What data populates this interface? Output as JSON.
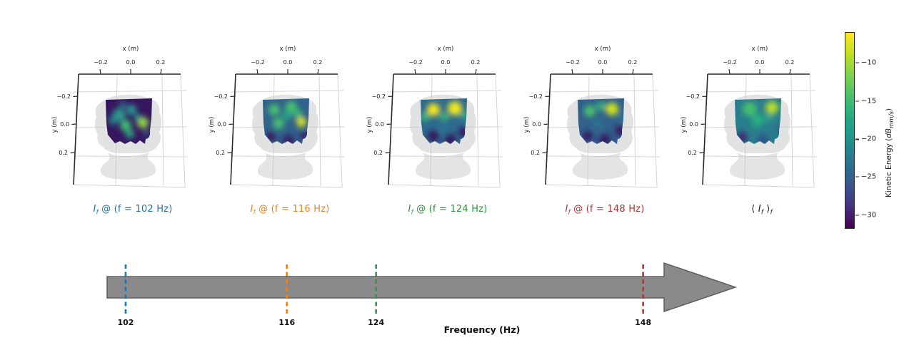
{
  "panels": [
    {
      "text": "I_f @ (f = 102 Hz)",
      "caption_parts": [
        {
          "text": "I",
          "italic": true
        },
        {
          "text": "f",
          "sub": true,
          "italic": true
        },
        {
          "text": " @ (f = 102 Hz)"
        }
      ],
      "caption_color": "#1b6fae",
      "axis": {
        "x_label": "x (m)",
        "y_label": "y (m)",
        "x_ticks": [
          "−0.2",
          "0.0",
          "0.2"
        ],
        "y_ticks": [
          "−0.2",
          "0.0",
          "0.2"
        ]
      },
      "heatmap_base": "#35175e",
      "hotspots": [
        [
          96,
          106,
          9,
          "#2f998c"
        ],
        [
          113,
          99,
          7,
          "#2f998c"
        ],
        [
          105,
          121,
          8,
          "#3dbc74"
        ],
        [
          129,
          117,
          8,
          "#8ed645"
        ],
        [
          87,
          114,
          6,
          "#28878b"
        ],
        [
          111,
          133,
          6,
          "#2fa587"
        ],
        [
          121,
          109,
          5,
          "#28878b"
        ],
        [
          101,
          92,
          5,
          "#2d6d8e"
        ],
        [
          134,
          131,
          4,
          "#2d6d8e"
        ]
      ]
    },
    {
      "text": "I_f @ (f = 116 Hz)",
      "caption_parts": [
        {
          "text": "I",
          "italic": true
        },
        {
          "text": "f",
          "sub": true,
          "italic": true
        },
        {
          "text": " @ (f = 116 Hz)"
        }
      ],
      "caption_color": "#e8821e",
      "axis": {
        "x_label": "x (m)",
        "y_label": "y (m)",
        "x_ticks": [
          "−0.2",
          "0.0",
          "0.2"
        ],
        "y_ticks": [
          "−0.2",
          "0.0",
          "0.2"
        ]
      },
      "heatmap_base": "#30618c",
      "hotspots": [
        [
          93,
          99,
          8,
          "#49c16e"
        ],
        [
          117,
          95,
          8,
          "#49c16e"
        ],
        [
          131,
          116,
          7,
          "#dde225"
        ],
        [
          99,
          118,
          8,
          "#44bf70"
        ],
        [
          111,
          106,
          7,
          "#26a585"
        ],
        [
          88,
          137,
          7,
          "#371a5e"
        ],
        [
          113,
          142,
          8,
          "#371a5e"
        ],
        [
          135,
          135,
          6,
          "#371a5e"
        ],
        [
          126,
          104,
          6,
          "#35b779"
        ]
      ]
    },
    {
      "text": "I_f @ (f = 124 Hz)",
      "caption_parts": [
        {
          "text": "I",
          "italic": true
        },
        {
          "text": "f",
          "sub": true,
          "italic": true
        },
        {
          "text": " @ (f = 124 Hz)"
        }
      ],
      "caption_color": "#2e9440",
      "axis": {
        "x_label": "x (m)",
        "y_label": "y (m)",
        "x_ticks": [
          "−0.2",
          "0.0",
          "0.2"
        ],
        "y_ticks": [
          "−0.2",
          "0.0",
          "0.2"
        ]
      },
      "heatmap_base": "#2e6a8e",
      "hotspots": [
        [
          95,
          99,
          9,
          "#f0e51e"
        ],
        [
          125,
          97,
          10,
          "#f0e51e"
        ],
        [
          110,
          109,
          6,
          "#35b779"
        ],
        [
          83,
          109,
          6,
          "#35b779"
        ],
        [
          138,
          107,
          5,
          "#35b779"
        ],
        [
          95,
          136,
          8,
          "#34175c"
        ],
        [
          119,
          141,
          8,
          "#34175c"
        ],
        [
          137,
          130,
          7,
          "#34175c"
        ],
        [
          108,
          125,
          5,
          "#2a788e"
        ]
      ]
    },
    {
      "text": "I_f @ (f = 148 Hz)",
      "caption_parts": [
        {
          "text": "I",
          "italic": true
        },
        {
          "text": "f",
          "sub": true,
          "italic": true
        },
        {
          "text": " @ (f = 148 Hz)"
        }
      ],
      "caption_color": "#b23030",
      "axis": {
        "x_label": "x (m)",
        "y_label": "y (m)",
        "x_ticks": [
          "−0.2",
          "0.0",
          "0.2"
        ],
        "y_ticks": [
          "−0.2",
          "0.0",
          "0.2"
        ]
      },
      "heatmap_base": "#31618c",
      "hotspots": [
        [
          94,
          101,
          8,
          "#4ac16d"
        ],
        [
          125,
          98,
          9,
          "#cfe11d"
        ],
        [
          109,
          94,
          6,
          "#35b779"
        ],
        [
          91,
          136,
          7,
          "#37195f"
        ],
        [
          115,
          141,
          8,
          "#37195f"
        ],
        [
          136,
          128,
          7,
          "#37195f"
        ],
        [
          105,
          119,
          6,
          "#2a788e"
        ],
        [
          140,
          110,
          5,
          "#2a788e"
        ]
      ]
    },
    {
      "text": "⟨ I_f ⟩_f",
      "caption_parts": [
        {
          "text": "⟨ "
        },
        {
          "text": "I",
          "italic": true
        },
        {
          "text": "f",
          "sub": true,
          "italic": true
        },
        {
          "text": " ⟩"
        },
        {
          "text": "f",
          "sub": true,
          "italic": true
        }
      ],
      "caption_color": "#1a1a1a",
      "axis": {
        "x_label": "x (m)",
        "y_label": "y (m)",
        "x_ticks": [
          "−0.2",
          "0.0",
          "0.2"
        ],
        "y_ticks": [
          "−0.2",
          "0.0",
          "0.2"
        ]
      },
      "heatmap_base": "#2a7d8c",
      "hotspots": [
        [
          98,
          98,
          10,
          "#45bf70"
        ],
        [
          129,
          96,
          9,
          "#b8dd2c"
        ],
        [
          109,
          114,
          9,
          "#27ad81"
        ],
        [
          87,
          138,
          8,
          "#3d2a72"
        ],
        [
          117,
          142,
          9,
          "#31558b"
        ],
        [
          138,
          126,
          6,
          "#2a6a8d"
        ],
        [
          125,
          110,
          6,
          "#2fa287"
        ]
      ]
    }
  ],
  "colorbar": {
    "label_text": "Kinetic Energy (dB_mm/s)",
    "label_parts": [
      {
        "text": "Kinetic Energy ("
      },
      {
        "text": "dB",
        "italic": true
      },
      {
        "text": "mm/s",
        "sub": true,
        "italic": true
      },
      {
        "text": ")"
      }
    ],
    "ticks": [
      "−10",
      "−15",
      "−20",
      "−25",
      "−30"
    ],
    "tick_offsets": [
      0.156,
      0.352,
      0.545,
      0.736,
      0.931
    ],
    "gradient": [
      "#fde725",
      "#bddf26",
      "#7ad151",
      "#44bf70",
      "#22a884",
      "#21918c",
      "#2c728e",
      "#39568c",
      "#46327e",
      "#440154"
    ]
  },
  "frequency_axis": {
    "label": "Frequency (Hz)",
    "arrow_color": "#8a8a8a",
    "arrow_outline": "#5e5e5e",
    "ticks": [
      {
        "label": "102",
        "color": "#1f77b4",
        "pos": 0.0295
      },
      {
        "label": "116",
        "color": "#f28118",
        "pos": 0.286
      },
      {
        "label": "124",
        "color": "#3f8f4f",
        "pos": 0.428
      },
      {
        "label": "148",
        "color": "#c22f2f",
        "pos": 0.853
      }
    ]
  },
  "chart_data": {
    "type": "heatmap",
    "title": "",
    "panels": [
      {
        "caption": "I_f @ (f = 102 Hz)",
        "frequency_hz": 102
      },
      {
        "caption": "I_f @ (f = 116 Hz)",
        "frequency_hz": 116
      },
      {
        "caption": "I_f @ (f = 124 Hz)",
        "frequency_hz": 124
      },
      {
        "caption": "I_f @ (f = 148 Hz)",
        "frequency_hz": 148
      },
      {
        "caption": "⟨ I_f ⟩_f",
        "frequency_hz": "frequency-average"
      }
    ],
    "x_axis": {
      "label": "x (m)",
      "ticks": [
        -0.2,
        0.0,
        0.2
      ]
    },
    "y_axis": {
      "label": "y (m)",
      "ticks": [
        -0.2,
        0.0,
        0.2
      ]
    },
    "colorbar": {
      "label": "Kinetic Energy (dB_mm/s)",
      "ticks": [
        -10,
        -15,
        -20,
        -25,
        -30
      ],
      "colormap": "viridis"
    },
    "frequency_axis": {
      "label": "Frequency (Hz)",
      "marked_frequencies": [
        102,
        116,
        124,
        148
      ]
    },
    "grid": true,
    "legend_position": "right-colorbar"
  }
}
